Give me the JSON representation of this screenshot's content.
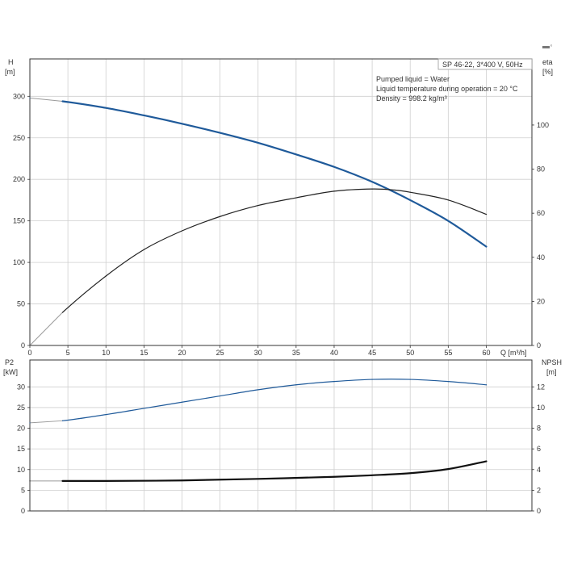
{
  "chart_data": [
    {
      "type": "line",
      "info": {
        "model": "SP 46-22, 3*400 V, 50Hz",
        "liquid": "Pumped liquid = Water",
        "temperature": "Liquid temperature during operation = 20 °C",
        "density": "Density = 998.2 kg/m³"
      },
      "y_label": [
        "H",
        "[m]"
      ],
      "y2_label": [
        "eta",
        "[%]"
      ],
      "x_label": "Q [m³/h]",
      "xlim": [
        0,
        66
      ],
      "ylim": [
        0,
        345
      ],
      "y2lim": [
        0,
        130
      ],
      "x_ticks": [
        0,
        5,
        10,
        15,
        20,
        25,
        30,
        35,
        40,
        45,
        50,
        55,
        60
      ],
      "y_ticks": [
        0,
        50,
        100,
        150,
        200,
        250,
        300
      ],
      "y2_ticks": [
        0,
        20,
        40,
        60,
        80,
        100
      ],
      "grid": true,
      "series": [
        {
          "axis": "left",
          "color": "#1f5a9a",
          "x": [
            0,
            4.3,
            10,
            15,
            20,
            25,
            30,
            35,
            40,
            45,
            50,
            55,
            60
          ],
          "y": [
            298,
            294,
            286,
            277,
            267,
            256,
            244,
            230,
            215,
            197,
            175,
            150,
            119
          ]
        },
        {
          "axis": "right",
          "color": "#222222",
          "x": [
            0,
            4.3,
            10,
            15,
            20,
            25,
            30,
            35,
            40,
            45,
            48,
            50,
            55,
            60
          ],
          "y": [
            0,
            15,
            31.5,
            43.5,
            52,
            58.5,
            63.5,
            67,
            70,
            71,
            70.5,
            69.5,
            66,
            59.5
          ]
        }
      ]
    },
    {
      "type": "line",
      "y_label": [
        "P2",
        "[kW]"
      ],
      "y2_label": [
        "NPSH",
        "[m]"
      ],
      "xlim": [
        0,
        66
      ],
      "ylim": [
        0,
        36.5
      ],
      "y2lim": [
        0,
        14.6
      ],
      "y_ticks": [
        0,
        5,
        10,
        15,
        20,
        25,
        30
      ],
      "y2_ticks": [
        0,
        2,
        4,
        6,
        8,
        10,
        12
      ],
      "grid": true,
      "series": [
        {
          "axis": "left",
          "color": "#1f5a9a",
          "x": [
            0,
            4.3,
            10,
            15,
            20,
            25,
            30,
            35,
            40,
            45,
            50,
            55,
            60
          ],
          "y": [
            21.3,
            21.8,
            23.3,
            24.8,
            26.3,
            27.8,
            29.3,
            30.5,
            31.3,
            31.8,
            31.8,
            31.3,
            30.5
          ]
        },
        {
          "axis": "right",
          "color": "#111111",
          "x": [
            0,
            4.3,
            10,
            20,
            30,
            40,
            45,
            50,
            55,
            60
          ],
          "y": [
            2.9,
            2.9,
            2.9,
            2.95,
            3.1,
            3.3,
            3.45,
            3.65,
            4.05,
            4.8
          ]
        }
      ]
    }
  ]
}
